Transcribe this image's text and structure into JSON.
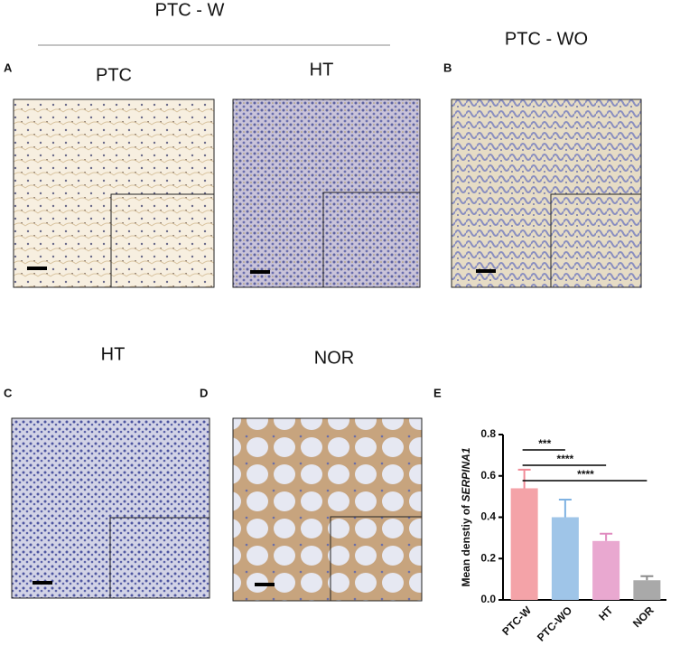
{
  "header": {
    "group_w": "PTC - W",
    "group_wo": "PTC - WO"
  },
  "panels": [
    {
      "label": "A",
      "titles": [
        "PTC",
        "HT"
      ]
    },
    {
      "label": "B"
    },
    {
      "label": "C",
      "titles": [
        "HT"
      ]
    },
    {
      "label": "D",
      "titles": [
        "NOR"
      ]
    },
    {
      "label": "E"
    }
  ],
  "chart_data": {
    "type": "bar",
    "y_label": "Mean denstiy of ",
    "y_label_gene": "SERPINA1",
    "categories": [
      "PTC-W",
      "PTC-WO",
      "HT",
      "NOR"
    ],
    "values": [
      0.54,
      0.4,
      0.285,
      0.095
    ],
    "errors": [
      0.09,
      0.085,
      0.035,
      0.02
    ],
    "colors": [
      "#f4a3a8",
      "#9fc5e8",
      "#e9a8d0",
      "#a9a9a9"
    ],
    "error_colors": [
      "#f08a96",
      "#7fb2e2",
      "#e08cc0",
      "#8a8a8a"
    ],
    "ylim": [
      0,
      0.8
    ],
    "yticks": [
      {
        "value": 0,
        "label": "0.0"
      },
      0.2,
      0.4,
      0.6,
      0.8
    ],
    "significance": [
      "***",
      "****",
      "****"
    ]
  }
}
